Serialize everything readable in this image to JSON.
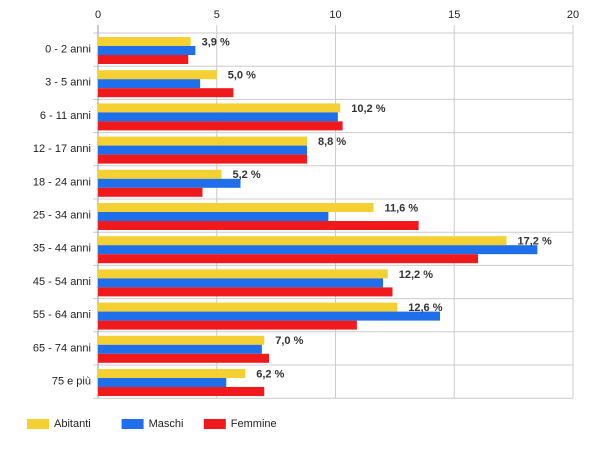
{
  "chart_data": {
    "type": "bar",
    "orientation": "horizontal",
    "categories": [
      "0 - 2 anni",
      "3 - 5 anni",
      "6 - 11 anni",
      "12 - 17 anni",
      "18 - 24 anni",
      "25 - 34 anni",
      "35 - 44 anni",
      "45 - 54 anni",
      "55 - 64 anni",
      "65 - 74 anni",
      "75 e più"
    ],
    "series": [
      {
        "name": "Abitanti",
        "color": "#f5d033",
        "values": [
          3.9,
          5.0,
          10.2,
          8.8,
          5.2,
          11.6,
          17.2,
          12.2,
          12.6,
          7.0,
          6.2
        ]
      },
      {
        "name": "Maschi",
        "color": "#1f6fea",
        "values": [
          4.1,
          4.3,
          10.1,
          8.8,
          6.0,
          9.7,
          18.5,
          12.0,
          14.4,
          6.9,
          5.4
        ]
      },
      {
        "name": "Femmine",
        "color": "#f0191c",
        "values": [
          3.8,
          5.7,
          10.3,
          8.8,
          4.4,
          13.5,
          16.0,
          12.4,
          10.9,
          7.2,
          7.0
        ]
      }
    ],
    "data_labels": [
      "3,9 %",
      "5,0 %",
      "10,2 %",
      "8,8 %",
      "5,2 %",
      "11,6 %",
      "17,2 %",
      "12,2 %",
      "12,6 %",
      "7,0 %",
      "6,2 %"
    ],
    "x_ticks": [
      0,
      5,
      10,
      15,
      20
    ],
    "xlim": [
      0,
      20
    ],
    "xaxis_position": "top",
    "grid": true,
    "legend_position": "bottom-left"
  }
}
